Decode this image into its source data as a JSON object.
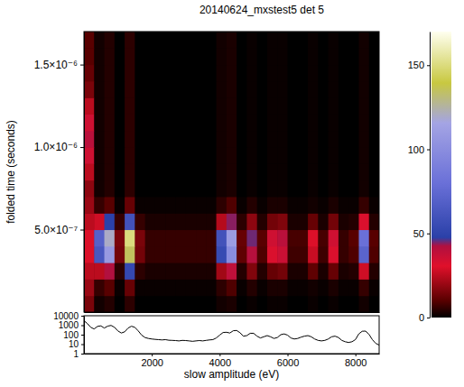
{
  "chart_data": [
    {
      "type": "heatmap",
      "title": "20140624_mxstest5 det 5",
      "ylabel": "folded time (seconds)",
      "xlim": [
        0,
        8700
      ],
      "ylim": [
        0,
        1.7e-06
      ],
      "yticks": [
        {
          "value": 5e-07,
          "label": "5.0×10⁻⁷"
        },
        {
          "value": 1e-06,
          "label": "1.0×10⁻⁶"
        },
        {
          "value": 1.5e-06,
          "label": "1.5×10⁻⁶"
        }
      ],
      "tick_labels": "y",
      "x_bins": [
        0,
        300,
        600,
        900,
        1200,
        1500,
        1800,
        2100,
        2400,
        2700,
        3000,
        3300,
        3600,
        3900,
        4200,
        4500,
        4800,
        5100,
        5400,
        5700,
        6000,
        6300,
        6600,
        6900,
        7200,
        7500,
        7800,
        8100,
        8400,
        8700
      ],
      "y_bins": [
        0,
        1e-07,
        2e-07,
        3e-07,
        4e-07,
        5e-07,
        6e-07,
        7e-07,
        8e-07,
        9e-07,
        1e-06,
        1.1e-06,
        1.2e-06,
        1.3e-06,
        1.4e-06,
        1.5e-06,
        1.6e-06,
        1.7e-06
      ],
      "z": [
        [
          15,
          2,
          4,
          0,
          5,
          0,
          0,
          0,
          0,
          0,
          0,
          0,
          0,
          2,
          3,
          0,
          1,
          0,
          1,
          1,
          0,
          0,
          1,
          0,
          1,
          0,
          0,
          2,
          0
        ],
        [
          20,
          6,
          10,
          1,
          12,
          1,
          1,
          1,
          1,
          1,
          1,
          1,
          1,
          5,
          9,
          1,
          4,
          1,
          3,
          3,
          1,
          1,
          2,
          1,
          3,
          1,
          1,
          6,
          1
        ],
        [
          25,
          25,
          42,
          5,
          53,
          5,
          3,
          3,
          3,
          3,
          3,
          3,
          3,
          21,
          39,
          4,
          16,
          4,
          12,
          14,
          3,
          3,
          11,
          3,
          12,
          3,
          4,
          28,
          4
        ],
        [
          30,
          63,
          108,
          14,
          135,
          14,
          6,
          6,
          6,
          6,
          6,
          6,
          6,
          54,
          99,
          11,
          41,
          9,
          32,
          36,
          7,
          7,
          27,
          7,
          32,
          6,
          9,
          72,
          9
        ],
        [
          30,
          70,
          120,
          15,
          150,
          15,
          6,
          6,
          6,
          6,
          6,
          6,
          6,
          60,
          110,
          12,
          45,
          10,
          35,
          40,
          8,
          8,
          30,
          8,
          35,
          6,
          10,
          80,
          10
        ],
        [
          25,
          28,
          48,
          6,
          60,
          6,
          3,
          3,
          3,
          3,
          3,
          3,
          3,
          24,
          44,
          5,
          18,
          4,
          14,
          16,
          3,
          3,
          12,
          3,
          14,
          3,
          4,
          32,
          4
        ],
        [
          20,
          6,
          10,
          1,
          12,
          1,
          1,
          1,
          1,
          1,
          1,
          1,
          1,
          5,
          9,
          1,
          4,
          1,
          3,
          3,
          1,
          1,
          2,
          1,
          3,
          1,
          1,
          6,
          1
        ],
        [
          18,
          2,
          4,
          0,
          5,
          0,
          0,
          0,
          0,
          0,
          0,
          0,
          0,
          2,
          3,
          0,
          1,
          0,
          1,
          1,
          0,
          0,
          1,
          0,
          1,
          0,
          0,
          2,
          0
        ],
        [
          25,
          2,
          4,
          0,
          5,
          0,
          0,
          0,
          0,
          0,
          0,
          0,
          0,
          2,
          3,
          0,
          1,
          0,
          1,
          1,
          0,
          0,
          1,
          0,
          1,
          0,
          0,
          2,
          0
        ],
        [
          35,
          2,
          4,
          0,
          5,
          0,
          0,
          0,
          0,
          0,
          0,
          0,
          0,
          2,
          3,
          0,
          1,
          0,
          1,
          1,
          0,
          0,
          1,
          0,
          1,
          0,
          0,
          2,
          0
        ],
        [
          40,
          2,
          4,
          0,
          5,
          0,
          0,
          0,
          0,
          0,
          0,
          0,
          0,
          2,
          3,
          0,
          1,
          0,
          1,
          1,
          0,
          0,
          1,
          0,
          1,
          0,
          0,
          2,
          0
        ],
        [
          35,
          2,
          4,
          0,
          5,
          0,
          0,
          0,
          0,
          0,
          0,
          0,
          0,
          2,
          3,
          0,
          1,
          0,
          1,
          1,
          0,
          0,
          1,
          0,
          1,
          0,
          0,
          2,
          0
        ],
        [
          25,
          2,
          4,
          0,
          5,
          0,
          0,
          0,
          0,
          0,
          0,
          0,
          0,
          2,
          3,
          0,
          1,
          0,
          1,
          1,
          0,
          0,
          1,
          0,
          1,
          0,
          0,
          2,
          0
        ],
        [
          15,
          2,
          4,
          0,
          5,
          0,
          0,
          0,
          0,
          0,
          0,
          0,
          0,
          2,
          3,
          0,
          1,
          0,
          1,
          1,
          0,
          0,
          1,
          0,
          1,
          0,
          0,
          2,
          0
        ],
        [
          12,
          2,
          4,
          0,
          5,
          0,
          0,
          0,
          0,
          0,
          0,
          0,
          0,
          2,
          3,
          0,
          1,
          0,
          1,
          1,
          0,
          0,
          1,
          0,
          1,
          0,
          0,
          2,
          0
        ],
        [
          10,
          2,
          4,
          0,
          5,
          0,
          0,
          0,
          0,
          0,
          0,
          0,
          0,
          2,
          3,
          0,
          1,
          0,
          1,
          1,
          0,
          0,
          1,
          0,
          1,
          0,
          0,
          2,
          0
        ],
        [
          10,
          2,
          4,
          0,
          5,
          0,
          0,
          0,
          0,
          0,
          0,
          0,
          0,
          2,
          3,
          0,
          1,
          0,
          1,
          1,
          0,
          0,
          1,
          0,
          1,
          0,
          0,
          2,
          0
        ]
      ],
      "color_range": [
        0,
        170
      ],
      "color_ticks": [
        0,
        50,
        100,
        150
      ]
    },
    {
      "type": "line",
      "xlabel": "slow amplitude (eV)",
      "log": "y",
      "xlim": [
        0,
        8700
      ],
      "xticks": [
        2000,
        4000,
        6000,
        8000
      ],
      "ylim": [
        1,
        10000
      ],
      "yticks": [
        1,
        10,
        100,
        1000,
        10000
      ],
      "x": [
        0,
        100,
        200,
        300,
        400,
        500,
        600,
        700,
        800,
        900,
        1000,
        1100,
        1200,
        1300,
        1400,
        1500,
        1600,
        1700,
        1800,
        1900,
        2000,
        2100,
        2200,
        2300,
        2400,
        2500,
        2600,
        2700,
        2800,
        2900,
        3000,
        3100,
        3200,
        3300,
        3400,
        3500,
        3600,
        3700,
        3800,
        3900,
        4000,
        4100,
        4200,
        4300,
        4400,
        4500,
        4600,
        4700,
        4800,
        4900,
        5000,
        5100,
        5200,
        5300,
        5400,
        5500,
        5600,
        5700,
        5800,
        5900,
        6000,
        6100,
        6200,
        6300,
        6400,
        6500,
        6600,
        6700,
        6800,
        6900,
        7000,
        7100,
        7200,
        7300,
        7400,
        7500,
        7600,
        7700,
        7800,
        7900,
        8000,
        8100,
        8200,
        8300,
        8400,
        8500,
        8600,
        8700
      ],
      "series": [
        {
          "color": "#000000",
          "values": [
            3000,
            1500,
            600,
            400,
            750,
            850,
            500,
            800,
            950,
            600,
            250,
            150,
            200,
            500,
            780,
            600,
            250,
            90,
            50,
            40,
            35,
            32,
            30,
            28,
            30,
            26,
            25,
            24,
            22,
            25,
            24,
            22,
            20,
            22,
            24,
            22,
            25,
            28,
            30,
            45,
            90,
            170,
            180,
            150,
            260,
            280,
            160,
            70,
            80,
            140,
            140,
            70,
            45,
            60,
            80,
            60,
            40,
            50,
            100,
            120,
            90,
            45,
            35,
            40,
            55,
            70,
            80,
            60,
            35,
            25,
            22,
            25,
            35,
            60,
            70,
            50,
            25,
            18,
            15,
            18,
            30,
            120,
            230,
            240,
            110,
            30,
            12,
            8
          ]
        }
      ]
    }
  ]
}
